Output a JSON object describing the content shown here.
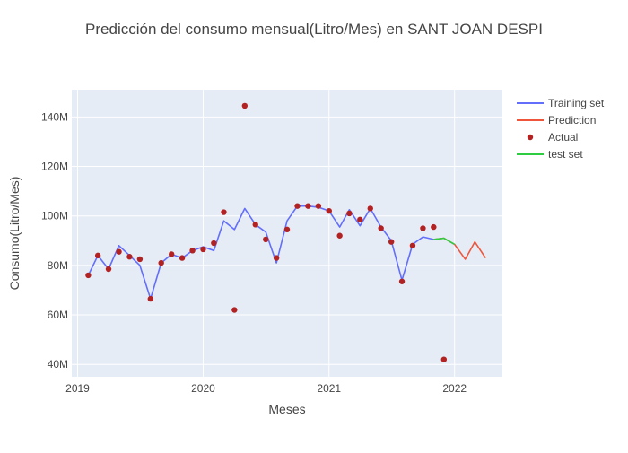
{
  "chart_data": {
    "type": "line",
    "title": "Predicción del consumo mensual(Litro/Mes) en SANT JOAN DESPI",
    "xlabel": "Meses",
    "ylabel": "Consumo(Litro/Mes)",
    "xlim": [
      "2018-12-15",
      "2022-05-20"
    ],
    "ylim": [
      35000000,
      151000000
    ],
    "grid": true,
    "legend_position": "top-right outside",
    "x_ticks": [
      {
        "date": "2019-01-01",
        "label": "2019"
      },
      {
        "date": "2020-01-01",
        "label": "2020"
      },
      {
        "date": "2021-01-01",
        "label": "2021"
      },
      {
        "date": "2022-01-01",
        "label": "2022"
      }
    ],
    "y_ticks": [
      {
        "value": 40000000,
        "label": "40M"
      },
      {
        "value": 60000000,
        "label": "60M"
      },
      {
        "value": 80000000,
        "label": "80M"
      },
      {
        "value": 100000000,
        "label": "100M"
      },
      {
        "value": 120000000,
        "label": "120M"
      },
      {
        "value": 140000000,
        "label": "140M"
      }
    ],
    "colors": {
      "plot_bg": "#e5ecf6",
      "grid": "#ffffff",
      "training": "#636efa",
      "prediction": "#ef553b",
      "actual": "#b22222",
      "test": "#2ecc40",
      "text": "#444444",
      "title": "#444444"
    },
    "series": [
      {
        "name": "Training set",
        "kind": "line",
        "color": "#636efa",
        "points": [
          [
            "2019-02-01",
            76000000
          ],
          [
            "2019-03-01",
            84000000
          ],
          [
            "2019-04-01",
            78500000
          ],
          [
            "2019-05-01",
            88000000
          ],
          [
            "2019-06-01",
            84000000
          ],
          [
            "2019-07-01",
            80000000
          ],
          [
            "2019-08-01",
            66500000
          ],
          [
            "2019-09-01",
            81000000
          ],
          [
            "2019-10-01",
            84500000
          ],
          [
            "2019-11-01",
            83000000
          ],
          [
            "2019-12-01",
            86000000
          ],
          [
            "2020-01-01",
            87500000
          ],
          [
            "2020-02-01",
            86000000
          ],
          [
            "2020-03-01",
            98000000
          ],
          [
            "2020-04-01",
            94500000
          ],
          [
            "2020-05-01",
            103000000
          ],
          [
            "2020-06-01",
            96500000
          ],
          [
            "2020-07-01",
            93500000
          ],
          [
            "2020-08-01",
            81000000
          ],
          [
            "2020-09-01",
            98000000
          ],
          [
            "2020-10-01",
            104000000
          ],
          [
            "2020-11-01",
            104000000
          ],
          [
            "2020-12-01",
            103500000
          ],
          [
            "2021-01-01",
            102000000
          ],
          [
            "2021-02-01",
            95500000
          ],
          [
            "2021-03-01",
            102500000
          ],
          [
            "2021-04-01",
            96000000
          ],
          [
            "2021-05-01",
            103000000
          ],
          [
            "2021-06-01",
            95500000
          ],
          [
            "2021-07-01",
            90000000
          ],
          [
            "2021-08-01",
            74000000
          ],
          [
            "2021-09-01",
            88500000
          ],
          [
            "2021-10-01",
            91500000
          ],
          [
            "2021-11-01",
            90500000
          ]
        ]
      },
      {
        "name": "Prediction",
        "kind": "line",
        "color": "#ef553b",
        "points": [
          [
            "2021-11-01",
            90500000
          ],
          [
            "2021-12-01",
            91000000
          ],
          [
            "2022-01-01",
            88500000
          ],
          [
            "2022-02-01",
            82500000
          ],
          [
            "2022-03-01",
            89500000
          ],
          [
            "2022-04-01",
            83000000
          ]
        ]
      },
      {
        "name": "Actual",
        "kind": "markers",
        "color": "#b22222",
        "points": [
          [
            "2019-02-01",
            76000000
          ],
          [
            "2019-03-01",
            84000000
          ],
          [
            "2019-04-01",
            78500000
          ],
          [
            "2019-05-01",
            85500000
          ],
          [
            "2019-06-01",
            83500000
          ],
          [
            "2019-07-01",
            82500000
          ],
          [
            "2019-08-01",
            66500000
          ],
          [
            "2019-09-01",
            81000000
          ],
          [
            "2019-10-01",
            84500000
          ],
          [
            "2019-11-01",
            83000000
          ],
          [
            "2019-12-01",
            86000000
          ],
          [
            "2020-01-01",
            86500000
          ],
          [
            "2020-02-01",
            89000000
          ],
          [
            "2020-03-01",
            101500000
          ],
          [
            "2020-04-01",
            62000000
          ],
          [
            "2020-05-01",
            144500000
          ],
          [
            "2020-06-01",
            96500000
          ],
          [
            "2020-07-01",
            90500000
          ],
          [
            "2020-08-01",
            83000000
          ],
          [
            "2020-09-01",
            94500000
          ],
          [
            "2020-10-01",
            104000000
          ],
          [
            "2020-11-01",
            104000000
          ],
          [
            "2020-12-01",
            104000000
          ],
          [
            "2021-01-01",
            102000000
          ],
          [
            "2021-02-01",
            92000000
          ],
          [
            "2021-03-01",
            101000000
          ],
          [
            "2021-04-01",
            98500000
          ],
          [
            "2021-05-01",
            103000000
          ],
          [
            "2021-06-01",
            95000000
          ],
          [
            "2021-07-01",
            89500000
          ],
          [
            "2021-08-01",
            73500000
          ],
          [
            "2021-09-01",
            88000000
          ],
          [
            "2021-10-01",
            95000000
          ],
          [
            "2021-11-01",
            95500000
          ],
          [
            "2021-12-01",
            42000000
          ]
        ]
      },
      {
        "name": "test set",
        "kind": "line",
        "color": "#2ecc40",
        "points": [
          [
            "2021-11-01",
            90500000
          ],
          [
            "2021-12-01",
            91000000
          ],
          [
            "2022-01-01",
            88500000
          ]
        ]
      }
    ]
  }
}
